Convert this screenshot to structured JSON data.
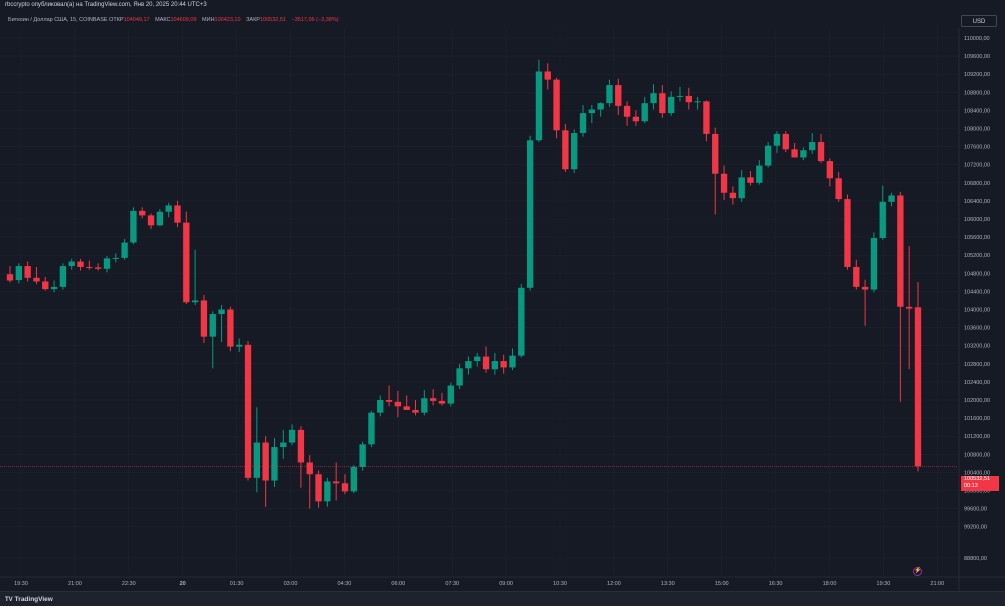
{
  "header": {
    "publisher": "rbccrypto опубликовал(а) на TradingView.com, Янв 20, 2025 20:44 UTC+3",
    "symbol": "Биткоин / Доллар США, 15, COINBASE",
    "open_label": "ОТКР",
    "open_value": "104049,17",
    "high_label": "МАКС",
    "high_value": "104609,09",
    "low_label": "МИН",
    "low_value": "100423,10",
    "close_label": "ЗАКР",
    "close_value": "100532,51",
    "change": "−3517,06 (−3,38%)",
    "currency": "USD"
  },
  "price_tag": {
    "price": "100532,51",
    "countdown": "00:13"
  },
  "footer": {
    "brand": "TradingView",
    "brand_icon": "tradingview-logo-icon"
  },
  "colors": {
    "background": "#161a25",
    "up": "#089981",
    "down": "#f23645",
    "grid": "#1f2330",
    "text": "#b2b5be"
  },
  "chart_data": {
    "type": "candlestick",
    "interval": "15",
    "exchange": "COINBASE",
    "ylim": [
      88600,
      110200
    ],
    "y_ticks": [
      "110000,00",
      "109600,00",
      "109200,00",
      "108800,00",
      "108400,00",
      "108000,00",
      "107600,00",
      "107200,00",
      "106800,00",
      "106400,00",
      "106000,00",
      "105600,00",
      "105200,00",
      "104800,00",
      "104400,00",
      "104000,00",
      "103600,00",
      "103200,00",
      "102800,00",
      "102400,00",
      "102000,00",
      "101600,00",
      "101200,00",
      "100800,00",
      "100400,00",
      "100000,00",
      "99600,00",
      "99200,00",
      "88800,00"
    ],
    "x_ticks": [
      "19:30",
      "21:00",
      "22:30",
      "20",
      "01:30",
      "03:00",
      "04:30",
      "06:00",
      "07:30",
      "09:00",
      "10:30",
      "12:00",
      "13:30",
      "15:00",
      "16:30",
      "18:00",
      "19:30",
      "21:00"
    ],
    "grid": true,
    "candles": [
      {
        "o": 104780,
        "h": 104960,
        "l": 104600,
        "c": 104640
      },
      {
        "o": 104650,
        "h": 105020,
        "l": 104580,
        "c": 104960
      },
      {
        "o": 104960,
        "h": 105060,
        "l": 104620,
        "c": 104700
      },
      {
        "o": 104700,
        "h": 104940,
        "l": 104560,
        "c": 104620
      },
      {
        "o": 104620,
        "h": 104720,
        "l": 104420,
        "c": 104450
      },
      {
        "o": 104450,
        "h": 104640,
        "l": 104380,
        "c": 104500
      },
      {
        "o": 104500,
        "h": 105020,
        "l": 104440,
        "c": 104960
      },
      {
        "o": 104960,
        "h": 105120,
        "l": 104880,
        "c": 105060
      },
      {
        "o": 105060,
        "h": 105120,
        "l": 104860,
        "c": 104940
      },
      {
        "o": 104940,
        "h": 105080,
        "l": 104880,
        "c": 104930
      },
      {
        "o": 104930,
        "h": 105020,
        "l": 104860,
        "c": 104900
      },
      {
        "o": 104900,
        "h": 105180,
        "l": 104820,
        "c": 105130
      },
      {
        "o": 105130,
        "h": 105240,
        "l": 105040,
        "c": 105140
      },
      {
        "o": 105140,
        "h": 105560,
        "l": 105100,
        "c": 105480
      },
      {
        "o": 105480,
        "h": 106260,
        "l": 105440,
        "c": 106180
      },
      {
        "o": 106180,
        "h": 106260,
        "l": 106020,
        "c": 106080
      },
      {
        "o": 106080,
        "h": 106120,
        "l": 105780,
        "c": 105860
      },
      {
        "o": 105860,
        "h": 106220,
        "l": 105840,
        "c": 106160
      },
      {
        "o": 106160,
        "h": 106360,
        "l": 106040,
        "c": 106300
      },
      {
        "o": 106300,
        "h": 106400,
        "l": 105820,
        "c": 105920
      },
      {
        "o": 105920,
        "h": 106160,
        "l": 104120,
        "c": 104160
      },
      {
        "o": 104160,
        "h": 105320,
        "l": 104100,
        "c": 104200
      },
      {
        "o": 104200,
        "h": 104320,
        "l": 103260,
        "c": 103400
      },
      {
        "o": 103400,
        "h": 103960,
        "l": 102700,
        "c": 103900
      },
      {
        "o": 103900,
        "h": 104100,
        "l": 103280,
        "c": 104000
      },
      {
        "o": 104000,
        "h": 104060,
        "l": 103080,
        "c": 103180
      },
      {
        "o": 103180,
        "h": 103360,
        "l": 103060,
        "c": 103220
      },
      {
        "o": 103220,
        "h": 103300,
        "l": 100220,
        "c": 100280
      },
      {
        "o": 100280,
        "h": 101840,
        "l": 99960,
        "c": 101060
      },
      {
        "o": 101060,
        "h": 101200,
        "l": 99640,
        "c": 100220
      },
      {
        "o": 100220,
        "h": 101160,
        "l": 100080,
        "c": 100960
      },
      {
        "o": 100960,
        "h": 101340,
        "l": 100700,
        "c": 101060
      },
      {
        "o": 101060,
        "h": 101460,
        "l": 101000,
        "c": 101340
      },
      {
        "o": 101340,
        "h": 101420,
        "l": 100060,
        "c": 100620
      },
      {
        "o": 100620,
        "h": 100780,
        "l": 99600,
        "c": 100360
      },
      {
        "o": 100360,
        "h": 100440,
        "l": 99620,
        "c": 99760
      },
      {
        "o": 99760,
        "h": 100280,
        "l": 99640,
        "c": 100200
      },
      {
        "o": 100200,
        "h": 100620,
        "l": 99780,
        "c": 100160
      },
      {
        "o": 100160,
        "h": 100360,
        "l": 99920,
        "c": 99980
      },
      {
        "o": 99980,
        "h": 100560,
        "l": 99940,
        "c": 100520
      },
      {
        "o": 100520,
        "h": 101080,
        "l": 100440,
        "c": 101020
      },
      {
        "o": 101020,
        "h": 101760,
        "l": 100960,
        "c": 101720
      },
      {
        "o": 101720,
        "h": 102100,
        "l": 101640,
        "c": 102000
      },
      {
        "o": 102000,
        "h": 102320,
        "l": 101860,
        "c": 101960
      },
      {
        "o": 101960,
        "h": 102200,
        "l": 101620,
        "c": 101860
      },
      {
        "o": 101860,
        "h": 102100,
        "l": 101780,
        "c": 101780
      },
      {
        "o": 101780,
        "h": 102000,
        "l": 101660,
        "c": 101720
      },
      {
        "o": 101720,
        "h": 102220,
        "l": 101660,
        "c": 102040
      },
      {
        "o": 102040,
        "h": 102240,
        "l": 101880,
        "c": 101980
      },
      {
        "o": 101980,
        "h": 102160,
        "l": 101880,
        "c": 101920
      },
      {
        "o": 101920,
        "h": 102380,
        "l": 101860,
        "c": 102320
      },
      {
        "o": 102320,
        "h": 102800,
        "l": 102240,
        "c": 102700
      },
      {
        "o": 102700,
        "h": 102960,
        "l": 102560,
        "c": 102860
      },
      {
        "o": 102860,
        "h": 103040,
        "l": 102740,
        "c": 102960
      },
      {
        "o": 102960,
        "h": 103180,
        "l": 102600,
        "c": 102680
      },
      {
        "o": 102680,
        "h": 103040,
        "l": 102560,
        "c": 102860
      },
      {
        "o": 102860,
        "h": 103000,
        "l": 102580,
        "c": 102720
      },
      {
        "o": 102720,
        "h": 103140,
        "l": 102660,
        "c": 102980
      },
      {
        "o": 102980,
        "h": 104560,
        "l": 102940,
        "c": 104480
      },
      {
        "o": 104480,
        "h": 107840,
        "l": 104420,
        "c": 107740
      },
      {
        "o": 107740,
        "h": 109520,
        "l": 107700,
        "c": 109260
      },
      {
        "o": 109260,
        "h": 109440,
        "l": 108860,
        "c": 109080
      },
      {
        "o": 109080,
        "h": 109120,
        "l": 107780,
        "c": 107960
      },
      {
        "o": 107960,
        "h": 108100,
        "l": 107040,
        "c": 107100
      },
      {
        "o": 107100,
        "h": 107980,
        "l": 107020,
        "c": 107900
      },
      {
        "o": 107900,
        "h": 108520,
        "l": 107820,
        "c": 108340
      },
      {
        "o": 108340,
        "h": 108520,
        "l": 108120,
        "c": 108420
      },
      {
        "o": 108420,
        "h": 108580,
        "l": 108260,
        "c": 108560
      },
      {
        "o": 108560,
        "h": 109080,
        "l": 108480,
        "c": 108960
      },
      {
        "o": 108960,
        "h": 109100,
        "l": 108300,
        "c": 108500
      },
      {
        "o": 108500,
        "h": 108600,
        "l": 108060,
        "c": 108260
      },
      {
        "o": 108260,
        "h": 108400,
        "l": 108060,
        "c": 108160
      },
      {
        "o": 108160,
        "h": 108700,
        "l": 108120,
        "c": 108560
      },
      {
        "o": 108560,
        "h": 108980,
        "l": 108420,
        "c": 108780
      },
      {
        "o": 108780,
        "h": 108960,
        "l": 108240,
        "c": 108340
      },
      {
        "o": 108340,
        "h": 108820,
        "l": 108280,
        "c": 108700
      },
      {
        "o": 108700,
        "h": 108920,
        "l": 108600,
        "c": 108720
      },
      {
        "o": 108720,
        "h": 108900,
        "l": 108420,
        "c": 108580
      },
      {
        "o": 108580,
        "h": 108700,
        "l": 108420,
        "c": 108600
      },
      {
        "o": 108600,
        "h": 108620,
        "l": 107720,
        "c": 107880
      },
      {
        "o": 107880,
        "h": 108020,
        "l": 106100,
        "c": 107000
      },
      {
        "o": 107000,
        "h": 107180,
        "l": 106420,
        "c": 106580
      },
      {
        "o": 106580,
        "h": 106720,
        "l": 106320,
        "c": 106460
      },
      {
        "o": 106460,
        "h": 107080,
        "l": 106380,
        "c": 106920
      },
      {
        "o": 106920,
        "h": 107060,
        "l": 106740,
        "c": 106800
      },
      {
        "o": 106800,
        "h": 107300,
        "l": 106760,
        "c": 107180
      },
      {
        "o": 107180,
        "h": 107700,
        "l": 107140,
        "c": 107620
      },
      {
        "o": 107620,
        "h": 107940,
        "l": 107460,
        "c": 107880
      },
      {
        "o": 107880,
        "h": 107940,
        "l": 107480,
        "c": 107540
      },
      {
        "o": 107540,
        "h": 107680,
        "l": 107360,
        "c": 107360
      },
      {
        "o": 107360,
        "h": 107580,
        "l": 107300,
        "c": 107520
      },
      {
        "o": 107520,
        "h": 107900,
        "l": 107440,
        "c": 107700
      },
      {
        "o": 107700,
        "h": 107880,
        "l": 107240,
        "c": 107280
      },
      {
        "o": 107280,
        "h": 107340,
        "l": 106720,
        "c": 106900
      },
      {
        "o": 106900,
        "h": 107040,
        "l": 106380,
        "c": 106440
      },
      {
        "o": 106440,
        "h": 106540,
        "l": 104880,
        "c": 104940
      },
      {
        "o": 104940,
        "h": 105100,
        "l": 104440,
        "c": 104500
      },
      {
        "o": 104500,
        "h": 104660,
        "l": 103640,
        "c": 104440
      },
      {
        "o": 104440,
        "h": 105700,
        "l": 104380,
        "c": 105580
      },
      {
        "o": 105580,
        "h": 106740,
        "l": 105540,
        "c": 106380
      },
      {
        "o": 106380,
        "h": 106580,
        "l": 106280,
        "c": 106520
      },
      {
        "o": 106520,
        "h": 106600,
        "l": 101960,
        "c": 104060
      },
      {
        "o": 104060,
        "h": 105400,
        "l": 102680,
        "c": 104020
      },
      {
        "o": 104049,
        "h": 104609,
        "l": 100423,
        "c": 100533
      }
    ]
  }
}
